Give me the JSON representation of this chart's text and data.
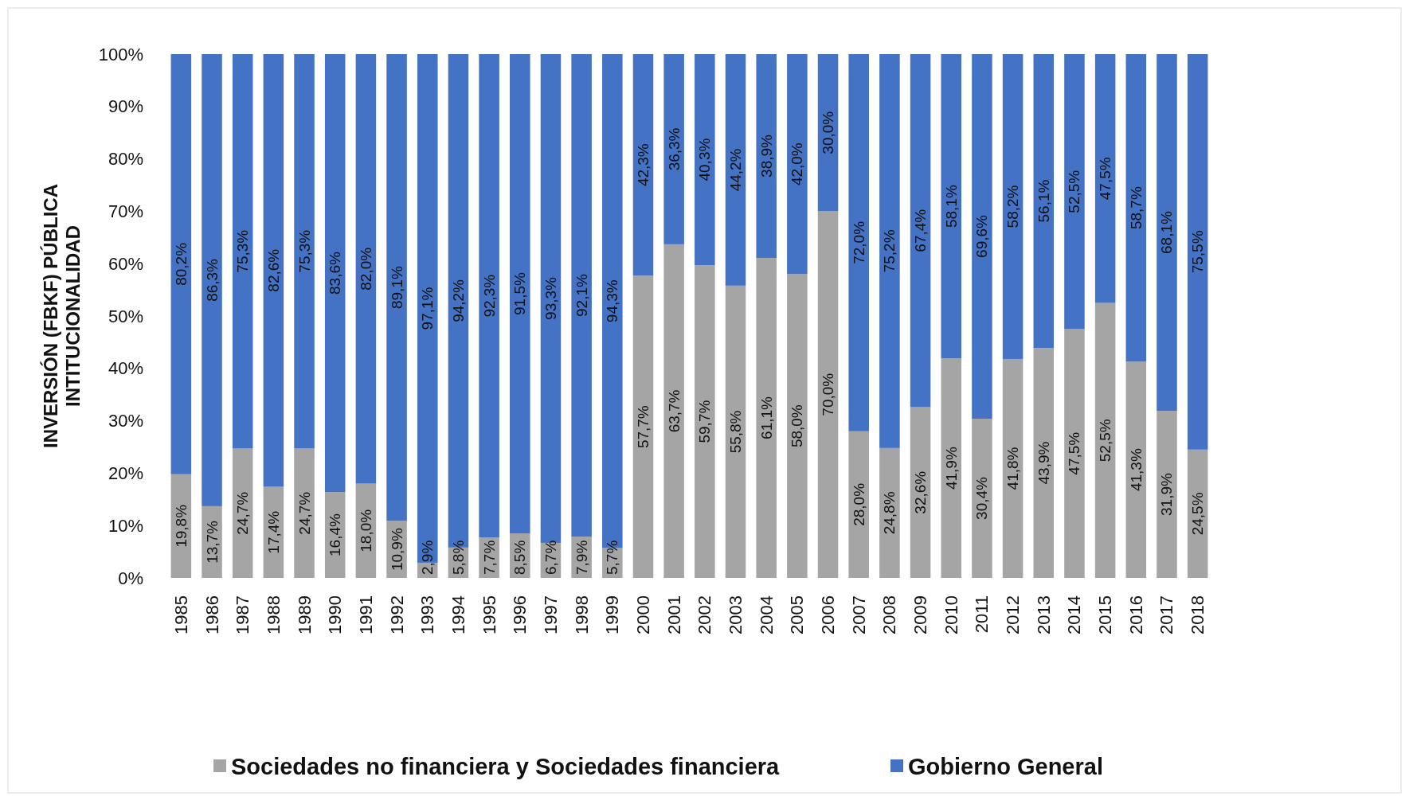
{
  "chart_data": {
    "type": "bar",
    "stacked": true,
    "ylabel": "INVERSIÓN (FBKF) PÚBLICA INTITUCIONALIDAD",
    "categories": [
      "1985",
      "1986",
      "1987",
      "1988",
      "1989",
      "1990",
      "1991",
      "1992",
      "1993",
      "1994",
      "1995",
      "1996",
      "1997",
      "1998",
      "1999",
      "2000",
      "2001",
      "2002",
      "2003",
      "2004",
      "2005",
      "2006",
      "2007",
      "2008",
      "2009",
      "2010",
      "2011",
      "2012",
      "2013",
      "2014",
      "2015",
      "2016",
      "2017",
      "2018"
    ],
    "series": [
      {
        "name": "Sociedades no financiera y Sociedades financiera",
        "color": "#a5a5a5",
        "values": [
          19.8,
          13.7,
          24.7,
          17.4,
          24.7,
          16.4,
          18.0,
          10.9,
          2.9,
          5.8,
          7.7,
          8.5,
          6.7,
          7.9,
          5.7,
          57.7,
          63.7,
          59.7,
          55.8,
          61.1,
          58.0,
          70.0,
          28.0,
          24.8,
          32.6,
          41.9,
          30.4,
          41.8,
          43.9,
          47.5,
          52.5,
          41.3,
          31.9,
          24.5
        ],
        "value_labels": [
          "19,8%",
          "13,7%",
          "24,7%",
          "17,4%",
          "24,7%",
          "16,4%",
          "18,0%",
          "10,9%",
          "2,9%",
          "5,8%",
          "7,7%",
          "8,5%",
          "6,7%",
          "7,9%",
          "5,7%",
          "57,7%",
          "63,7%",
          "59,7%",
          "55,8%",
          "61,1%",
          "58,0%",
          "70,0%",
          "28,0%",
          "24,8%",
          "32,6%",
          "41,9%",
          "30,4%",
          "41,8%",
          "43,9%",
          "47,5%",
          "52,5%",
          "41,3%",
          "31,9%",
          "24,5%"
        ]
      },
      {
        "name": "Gobierno General",
        "color": "#4472c4",
        "values": [
          80.2,
          86.3,
          75.3,
          82.6,
          75.3,
          83.6,
          82.0,
          89.1,
          97.1,
          94.2,
          92.3,
          91.5,
          93.3,
          92.1,
          94.3,
          42.3,
          36.3,
          40.3,
          44.2,
          38.9,
          42.0,
          30.0,
          72.0,
          75.2,
          67.4,
          58.1,
          69.6,
          58.2,
          56.1,
          52.5,
          47.5,
          58.7,
          68.1,
          75.5
        ],
        "value_labels": [
          "80,2%",
          "86,3%",
          "75,3%",
          "82,6%",
          "75,3%",
          "83,6%",
          "82,0%",
          "89,1%",
          "97,1%",
          "94,2%",
          "92,3%",
          "91,5%",
          "93,3%",
          "92,1%",
          "94,3%",
          "42,3%",
          "36,3%",
          "40,3%",
          "44,2%",
          "38,9%",
          "42,0%",
          "30,0%",
          "72,0%",
          "75,2%",
          "67,4%",
          "58,1%",
          "69,6%",
          "58,2%",
          "56,1%",
          "52,5%",
          "47,5%",
          "58,7%",
          "68,1%",
          "75,5%"
        ]
      }
    ],
    "ylim": [
      0,
      100
    ],
    "yticks": [
      {
        "value": 0,
        "label": "0%"
      },
      {
        "value": 10,
        "label": "10%"
      },
      {
        "value": 20,
        "label": "20%"
      },
      {
        "value": 30,
        "label": "30%"
      },
      {
        "value": 40,
        "label": "40%"
      },
      {
        "value": 50,
        "label": "50%"
      },
      {
        "value": 60,
        "label": "60%"
      },
      {
        "value": 70,
        "label": "70%"
      },
      {
        "value": 80,
        "label": "80%"
      },
      {
        "value": 90,
        "label": "90%"
      },
      {
        "value": 100,
        "label": "100%"
      }
    ],
    "grid": false,
    "legend": "bottom"
  }
}
